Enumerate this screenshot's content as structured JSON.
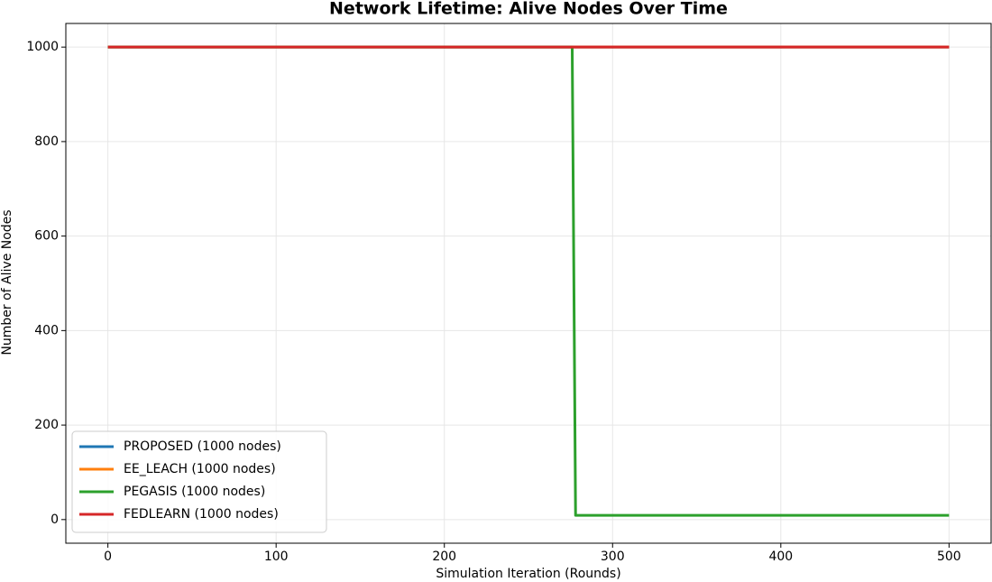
{
  "chart_data": {
    "type": "line",
    "title": "Network Lifetime: Alive Nodes Over Time",
    "xlabel": "Simulation Iteration (Rounds)",
    "ylabel": "Number of Alive Nodes",
    "xlim": [
      -25,
      525
    ],
    "ylim": [
      -50,
      1050
    ],
    "xticks": [
      0,
      100,
      200,
      300,
      400,
      500
    ],
    "yticks": [
      0,
      200,
      400,
      600,
      800,
      1000
    ],
    "grid": true,
    "legend": "lower left",
    "series": [
      {
        "name": "PROPOSED (1000 nodes)",
        "color": "#1f77b4",
        "x": [
          0,
          500
        ],
        "values": [
          1000,
          1000
        ]
      },
      {
        "name": "EE_LEACH (1000 nodes)",
        "color": "#ff7f0e",
        "x": [
          0,
          500
        ],
        "values": [
          1000,
          1000
        ]
      },
      {
        "name": "PEGASIS (1000 nodes)",
        "color": "#2ca02c",
        "x": [
          0,
          276,
          278,
          500
        ],
        "values": [
          1000,
          1000,
          9,
          9
        ]
      },
      {
        "name": "FEDLEARN (1000 nodes)",
        "color": "#d62728",
        "x": [
          0,
          500
        ],
        "values": [
          1000,
          1000
        ]
      }
    ]
  }
}
